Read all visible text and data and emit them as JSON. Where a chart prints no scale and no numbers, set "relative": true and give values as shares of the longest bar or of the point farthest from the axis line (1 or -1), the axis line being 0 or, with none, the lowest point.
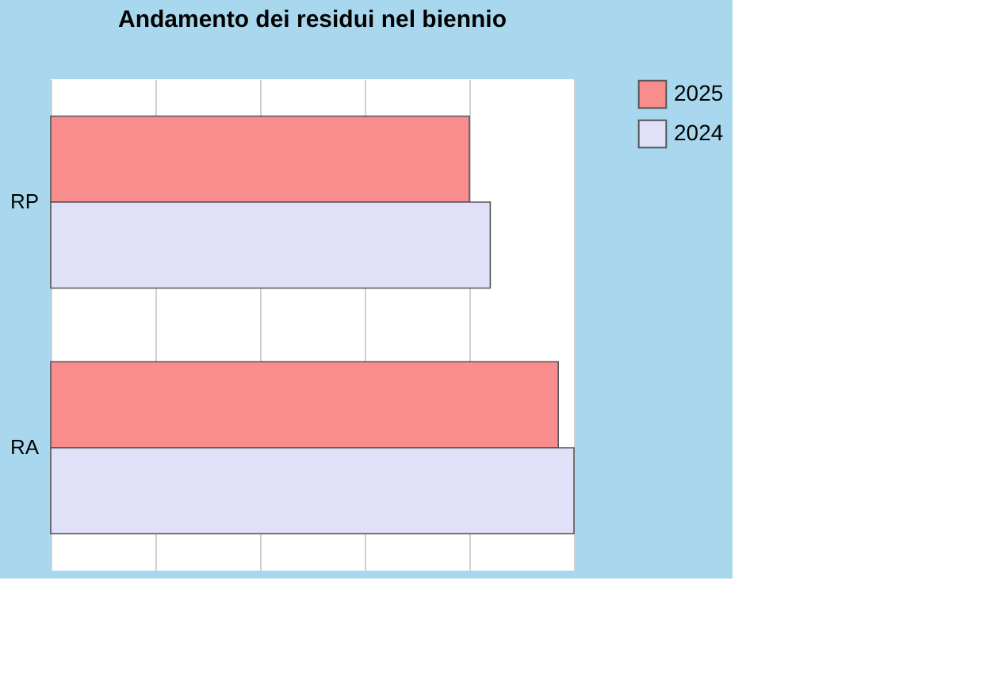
{
  "chart_data": {
    "type": "bar",
    "title": "Andamento dei residui nel biennio",
    "orientation": "horizontal",
    "relative": true,
    "categories": [
      "RP",
      "RA"
    ],
    "series": [
      {
        "name": "2025",
        "color": "#f98c8c",
        "values": [
          0.8,
          0.97
        ]
      },
      {
        "name": "2024",
        "color": "#e0e0f8",
        "values": [
          0.84,
          1.0
        ]
      }
    ],
    "grid": "x",
    "legend": "right"
  }
}
